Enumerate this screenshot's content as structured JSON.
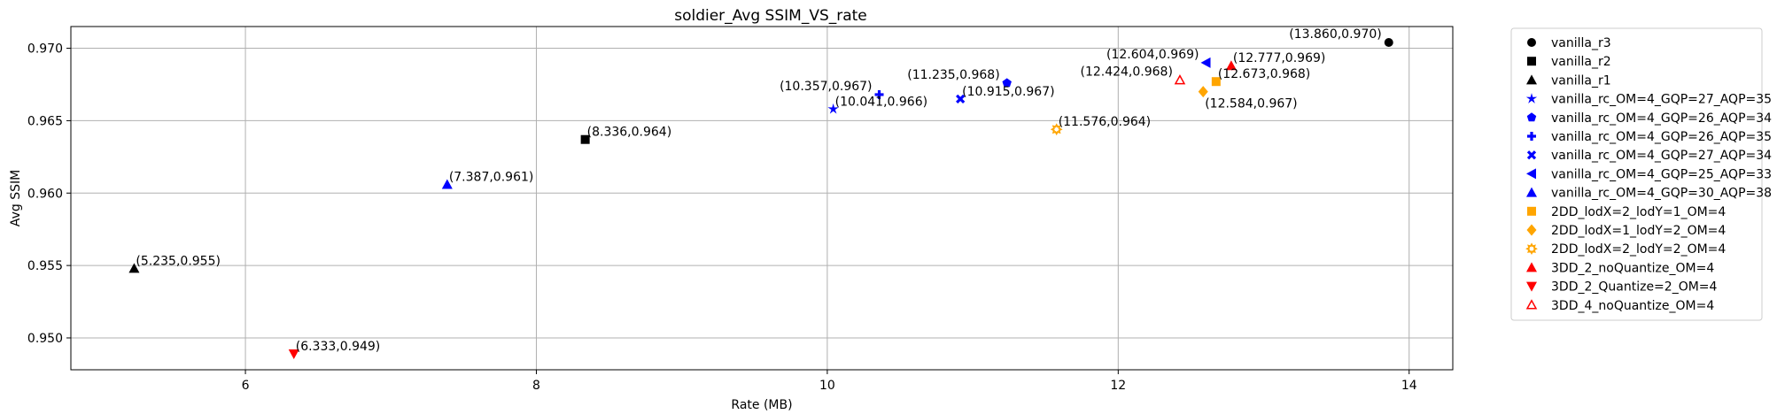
{
  "chart_data": {
    "type": "scatter",
    "title": "soldier_Avg SSIM_VS_rate",
    "xlabel": "Rate (MB)",
    "ylabel": "Avg SSIM",
    "xlim": [
      4.8,
      14.3
    ],
    "ylim": [
      0.9478,
      0.9715
    ],
    "x_ticks": [
      6,
      8,
      10,
      12,
      14
    ],
    "y_ticks": [
      0.95,
      0.955,
      0.96,
      0.965,
      0.97
    ],
    "x_tick_labels": [
      "6",
      "8",
      "10",
      "12",
      "14"
    ],
    "y_tick_labels": [
      "0.950",
      "0.955",
      "0.960",
      "0.965",
      "0.970"
    ],
    "grid": true,
    "legend_position": "outside-right",
    "series": [
      {
        "name": "vanilla_r3",
        "marker": "circle",
        "color": "#000000",
        "x": [
          13.86
        ],
        "y": [
          0.9704
        ],
        "label": "(13.860,0.970)",
        "label_side": "left"
      },
      {
        "name": "vanilla_r2",
        "marker": "square",
        "color": "#000000",
        "x": [
          8.336
        ],
        "y": [
          0.9637
        ],
        "label": "(8.336,0.964)",
        "label_side": "right"
      },
      {
        "name": "vanilla_r1",
        "marker": "triangle-up",
        "color": "#000000",
        "x": [
          5.235
        ],
        "y": [
          0.9548
        ],
        "label": "(5.235,0.955)",
        "label_side": "right"
      },
      {
        "name": "vanilla_rc_OM=4_GQP=27_AQP=35",
        "marker": "star",
        "color": "#0000ff",
        "x": [
          10.041
        ],
        "y": [
          0.9658
        ],
        "label": "(10.041,0.966)",
        "label_side": "right"
      },
      {
        "name": "vanilla_rc_OM=4_GQP=26_AQP=34",
        "marker": "pentagon",
        "color": "#0000ff",
        "x": [
          11.235
        ],
        "y": [
          0.9676
        ],
        "label": "(11.235,0.968)",
        "label_side": "left"
      },
      {
        "name": "vanilla_rc_OM=4_GQP=26_AQP=35",
        "marker": "plus",
        "color": "#0000ff",
        "x": [
          10.357
        ],
        "y": [
          0.9668
        ],
        "label": "(10.357,0.967)",
        "label_side": "left"
      },
      {
        "name": "vanilla_rc_OM=4_GQP=27_AQP=34",
        "marker": "x",
        "color": "#0000ff",
        "x": [
          10.915
        ],
        "y": [
          0.9665
        ],
        "label": "(10.915,0.967)",
        "label_side": "right"
      },
      {
        "name": "vanilla_rc_OM=4_GQP=25_AQP=33",
        "marker": "triangle-left",
        "color": "#0000ff",
        "x": [
          12.604
        ],
        "y": [
          0.969
        ],
        "label": "(12.604,0.969)",
        "label_side": "left"
      },
      {
        "name": "vanilla_rc_OM=4_GQP=30_AQP=38",
        "marker": "triangle-up",
        "color": "#0000ff",
        "x": [
          7.387
        ],
        "y": [
          0.9606
        ],
        "label": "(7.387,0.961)",
        "label_side": "right"
      },
      {
        "name": "2DD_lodX=2_lodY=1_OM=4",
        "marker": "square",
        "color": "#ffa500",
        "x": [
          12.673
        ],
        "y": [
          0.9677
        ],
        "label": "(12.673,0.968)",
        "label_side": "right"
      },
      {
        "name": "2DD_lodX=1_lodY=2_OM=4",
        "marker": "diamond",
        "color": "#ffa500",
        "x": [
          12.584
        ],
        "y": [
          0.967
        ],
        "label": "(12.584,0.967)",
        "label_side": "below-right"
      },
      {
        "name": "2DD_lodX=2_lodY=2_OM=4",
        "marker": "sun",
        "color": "#ffa500",
        "x": [
          11.576
        ],
        "y": [
          0.9644
        ],
        "label": "(11.576,0.964)",
        "label_side": "right"
      },
      {
        "name": "3DD_2_noQuantize_OM=4",
        "marker": "triangle-up",
        "color": "#ff0000",
        "x": [
          12.777
        ],
        "y": [
          0.9688
        ],
        "label": "(12.777,0.969)",
        "label_side": "right"
      },
      {
        "name": "3DD_2_Quantize=2_OM=4",
        "marker": "triangle-down",
        "color": "#ff0000",
        "x": [
          6.333
        ],
        "y": [
          0.9489
        ],
        "label": "(6.333,0.949)",
        "label_side": "right"
      },
      {
        "name": "3DD_4_noQuantize_OM=4",
        "marker": "triangle-up-open",
        "color": "#ff0000",
        "x": [
          12.424
        ],
        "y": [
          0.9678
        ],
        "label": "(12.424,0.968)",
        "label_side": "left"
      }
    ]
  }
}
